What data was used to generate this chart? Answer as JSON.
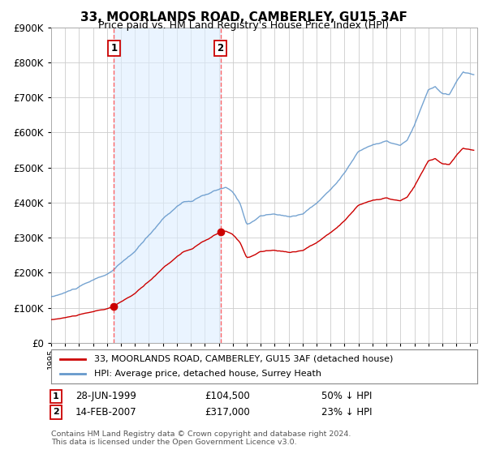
{
  "title": "33, MOORLANDS ROAD, CAMBERLEY, GU15 3AF",
  "subtitle": "Price paid vs. HM Land Registry's House Price Index (HPI)",
  "ylim": [
    0,
    900000
  ],
  "xlim_start": 1995.0,
  "xlim_end": 2025.5,
  "sale1_x": 1999.49,
  "sale1_y": 104500,
  "sale1_label": "1",
  "sale1_date": "28-JUN-1999",
  "sale1_price": "£104,500",
  "sale1_hpi": "50% ↓ HPI",
  "sale2_x": 2007.12,
  "sale2_y": 317000,
  "sale2_label": "2",
  "sale2_date": "14-FEB-2007",
  "sale2_price": "£317,000",
  "sale2_hpi": "23% ↓ HPI",
  "vline1_x": 1999.49,
  "vline2_x": 2007.12,
  "red_color": "#cc0000",
  "blue_color": "#6699cc",
  "shade_color": "#ddeeff",
  "vline_color": "#ff5555",
  "background_color": "#ffffff",
  "footnote": "Contains HM Land Registry data © Crown copyright and database right 2024.\nThis data is licensed under the Open Government Licence v3.0.",
  "legend_line1": "33, MOORLANDS ROAD, CAMBERLEY, GU15 3AF (detached house)",
  "legend_line2": "HPI: Average price, detached house, Surrey Heath"
}
